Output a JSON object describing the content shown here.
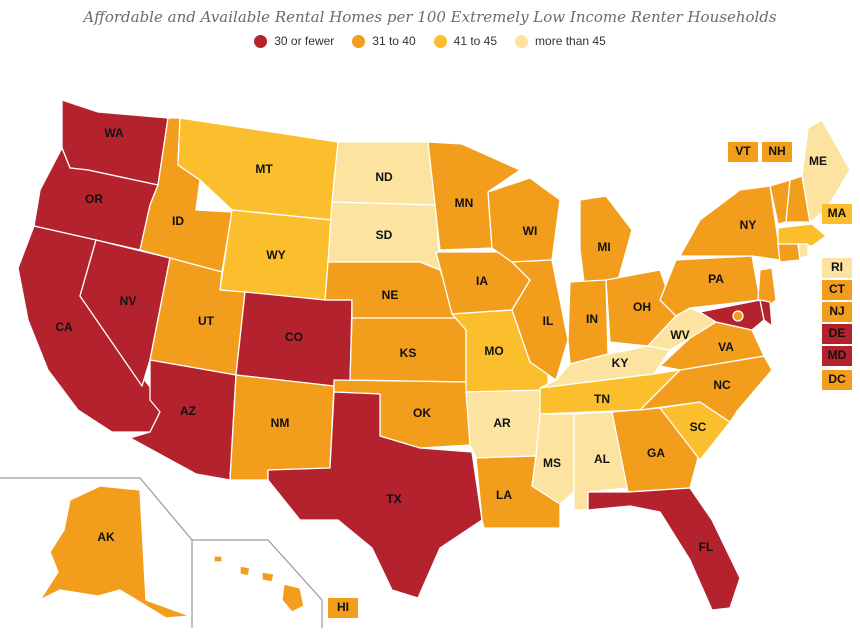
{
  "title": "Affordable and Available Rental Homes per 100 Extremely Low Income Renter Households",
  "legend": [
    {
      "label": "30 or fewer",
      "color": "#b3222d"
    },
    {
      "label": "31 to 40",
      "color": "#f29d1b"
    },
    {
      "label": "41 to 45",
      "color": "#fbbf2d"
    },
    {
      "label": "more than 45",
      "color": "#fde3a0"
    }
  ],
  "states": [
    {
      "code": "WA",
      "category": 0
    },
    {
      "code": "OR",
      "category": 0
    },
    {
      "code": "CA",
      "category": 0
    },
    {
      "code": "NV",
      "category": 0
    },
    {
      "code": "ID",
      "category": 1
    },
    {
      "code": "MT",
      "category": 2
    },
    {
      "code": "WY",
      "category": 2
    },
    {
      "code": "UT",
      "category": 1
    },
    {
      "code": "AZ",
      "category": 0
    },
    {
      "code": "CO",
      "category": 0
    },
    {
      "code": "NM",
      "category": 1
    },
    {
      "code": "ND",
      "category": 3
    },
    {
      "code": "SD",
      "category": 3
    },
    {
      "code": "NE",
      "category": 1
    },
    {
      "code": "KS",
      "category": 1
    },
    {
      "code": "OK",
      "category": 1
    },
    {
      "code": "TX",
      "category": 0
    },
    {
      "code": "MN",
      "category": 1
    },
    {
      "code": "IA",
      "category": 1
    },
    {
      "code": "MO",
      "category": 2
    },
    {
      "code": "AR",
      "category": 3
    },
    {
      "code": "LA",
      "category": 1
    },
    {
      "code": "WI",
      "category": 1
    },
    {
      "code": "IL",
      "category": 1
    },
    {
      "code": "MI",
      "category": 1
    },
    {
      "code": "IN",
      "category": 1
    },
    {
      "code": "OH",
      "category": 1
    },
    {
      "code": "KY",
      "category": 3
    },
    {
      "code": "TN",
      "category": 2
    },
    {
      "code": "MS",
      "category": 3
    },
    {
      "code": "AL",
      "category": 3
    },
    {
      "code": "GA",
      "category": 1
    },
    {
      "code": "FL",
      "category": 0
    },
    {
      "code": "SC",
      "category": 2
    },
    {
      "code": "NC",
      "category": 1
    },
    {
      "code": "VA",
      "category": 1
    },
    {
      "code": "WV",
      "category": 3
    },
    {
      "code": "PA",
      "category": 1
    },
    {
      "code": "NY",
      "category": 1
    },
    {
      "code": "ME",
      "category": 3
    },
    {
      "code": "AK",
      "category": 1
    },
    {
      "code": "HI",
      "category": 1
    }
  ],
  "small_states": [
    {
      "code": "VT",
      "category": 1
    },
    {
      "code": "NH",
      "category": 1
    },
    {
      "code": "MA",
      "category": 2
    },
    {
      "code": "RI",
      "category": 3
    },
    {
      "code": "CT",
      "category": 1
    },
    {
      "code": "NJ",
      "category": 1
    },
    {
      "code": "DE",
      "category": 0
    },
    {
      "code": "MD",
      "category": 0
    },
    {
      "code": "DC",
      "category": 1
    }
  ]
}
